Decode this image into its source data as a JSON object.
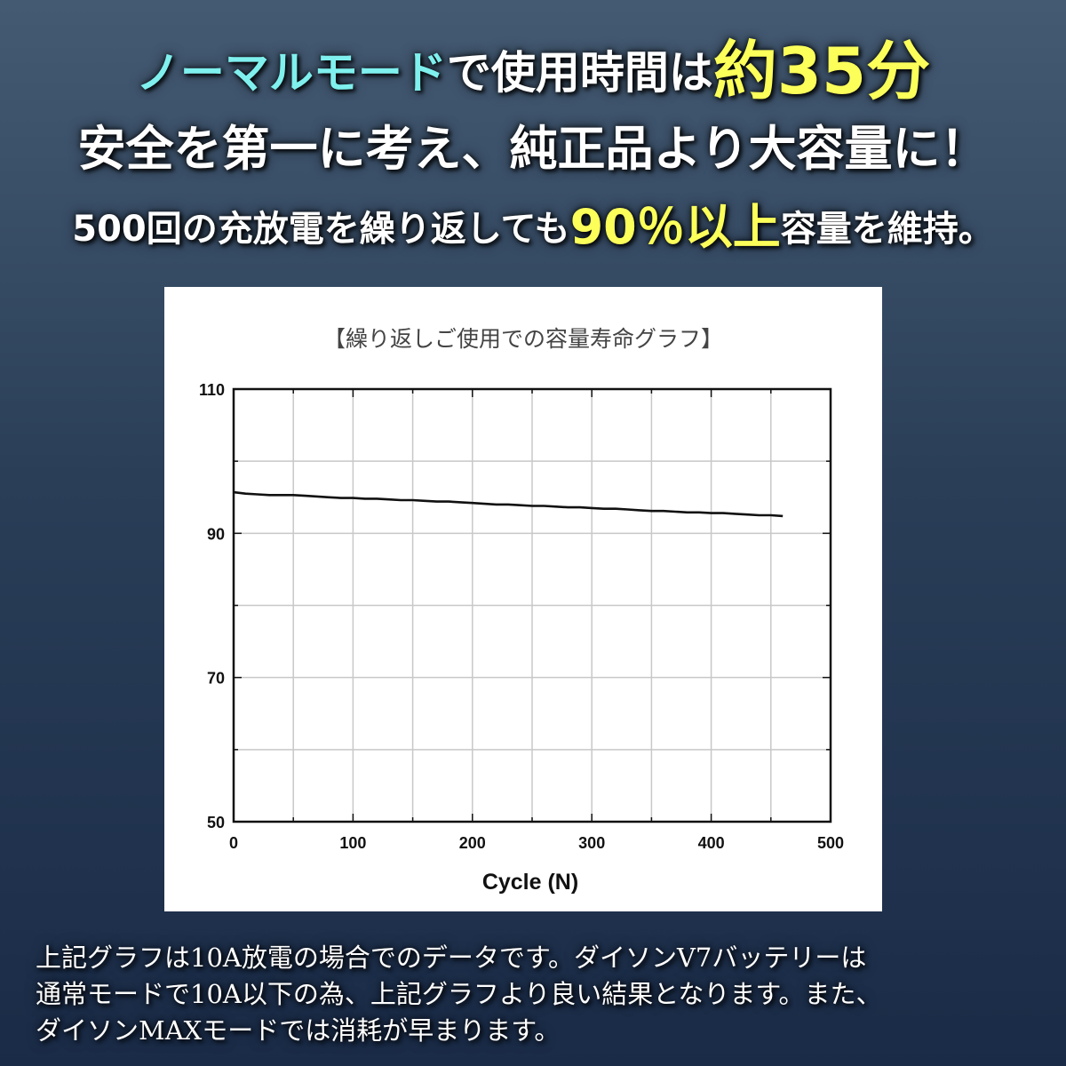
{
  "headline": {
    "line1_mode": "ノーマルモード",
    "line1_middle": "で使用時間は",
    "line1_highlight": "約35分",
    "line2": "安全を第一に考え、純正品より大容量に！",
    "line3_start": "500回の充放電を繰り返しても",
    "line3_highlight": "90％以上",
    "line3_end": "容量を維持。"
  },
  "colors": {
    "accent_cyan": "#7ff0ee",
    "accent_yellow": "#fcff5a",
    "background_top": "#445a72",
    "background_bottom": "#1a2b47",
    "curve": "#111111"
  },
  "chart_data": {
    "type": "line",
    "title": "【繰り返しご使用での容量寿命グラフ】",
    "xlabel": "Cycle (N)",
    "ylabel": "",
    "xlim": [
      0,
      500
    ],
    "ylim": [
      50,
      110
    ],
    "x_ticks": [
      "0",
      "100",
      "200",
      "300",
      "400",
      "500"
    ],
    "y_ticks": [
      "110",
      "90",
      "70",
      "50"
    ],
    "grid": true,
    "series": [
      {
        "x": [
          0,
          10,
          20,
          30,
          40,
          50,
          60,
          70,
          80,
          90,
          100,
          110,
          120,
          130,
          140,
          150,
          160,
          170,
          180,
          190,
          200,
          210,
          220,
          230,
          240,
          250,
          260,
          270,
          280,
          290,
          300,
          310,
          320,
          330,
          340,
          350,
          360,
          370,
          380,
          390,
          400,
          410,
          420,
          430,
          440,
          450,
          460
        ],
        "values": [
          95.7,
          95.5,
          95.4,
          95.3,
          95.3,
          95.3,
          95.2,
          95.1,
          95.0,
          94.9,
          94.9,
          94.8,
          94.8,
          94.7,
          94.6,
          94.6,
          94.5,
          94.4,
          94.4,
          94.3,
          94.2,
          94.1,
          94.0,
          94.0,
          93.9,
          93.8,
          93.8,
          93.7,
          93.6,
          93.6,
          93.5,
          93.4,
          93.4,
          93.3,
          93.2,
          93.1,
          93.1,
          93.0,
          92.9,
          92.9,
          92.8,
          92.8,
          92.7,
          92.6,
          92.5,
          92.5,
          92.4
        ]
      }
    ]
  },
  "footnote": "上記グラフは10A放電の場合でのデータです。ダイソンV7バッテリーは\n通常モードで10A以下の為、上記グラフより良い結果となります。また、\nダイソンMAXモードでは消耗が早まります。"
}
